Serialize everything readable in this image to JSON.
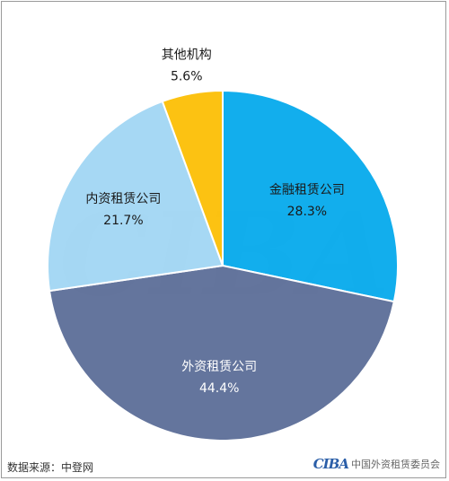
{
  "chart_data": {
    "type": "pie",
    "title": "",
    "slices": [
      {
        "label": "金融租赁公司",
        "value": 28.3,
        "value_label": "28.3%",
        "color": "#00a8ec",
        "text_color": "#1a1a1a"
      },
      {
        "label": "外资租赁公司",
        "value": 44.4,
        "value_label": "44.4%",
        "color": "#586b96",
        "text_color": "#ffffff"
      },
      {
        "label": "内资租赁公司",
        "value": 21.7,
        "value_label": "21.7%",
        "color": "#9fd5f3",
        "text_color": "#1a1a1a"
      },
      {
        "label": "其他机构",
        "value": 5.6,
        "value_label": "5.6%",
        "color": "#fcbd00",
        "text_color": "#1a1a1a"
      }
    ],
    "start": "12 o'clock",
    "direction": "clockwise"
  },
  "footer": {
    "source": "数据来源：中登网",
    "logo_mark": "CIBA",
    "logo_text": "中国外资租赁委员会"
  },
  "watermark": "CIBA",
  "colors": {
    "border": "#9a9a9a",
    "watermark": "#ededed",
    "logo_blue": "#2a5ea8",
    "logo_grey": "#8a8a8a"
  }
}
